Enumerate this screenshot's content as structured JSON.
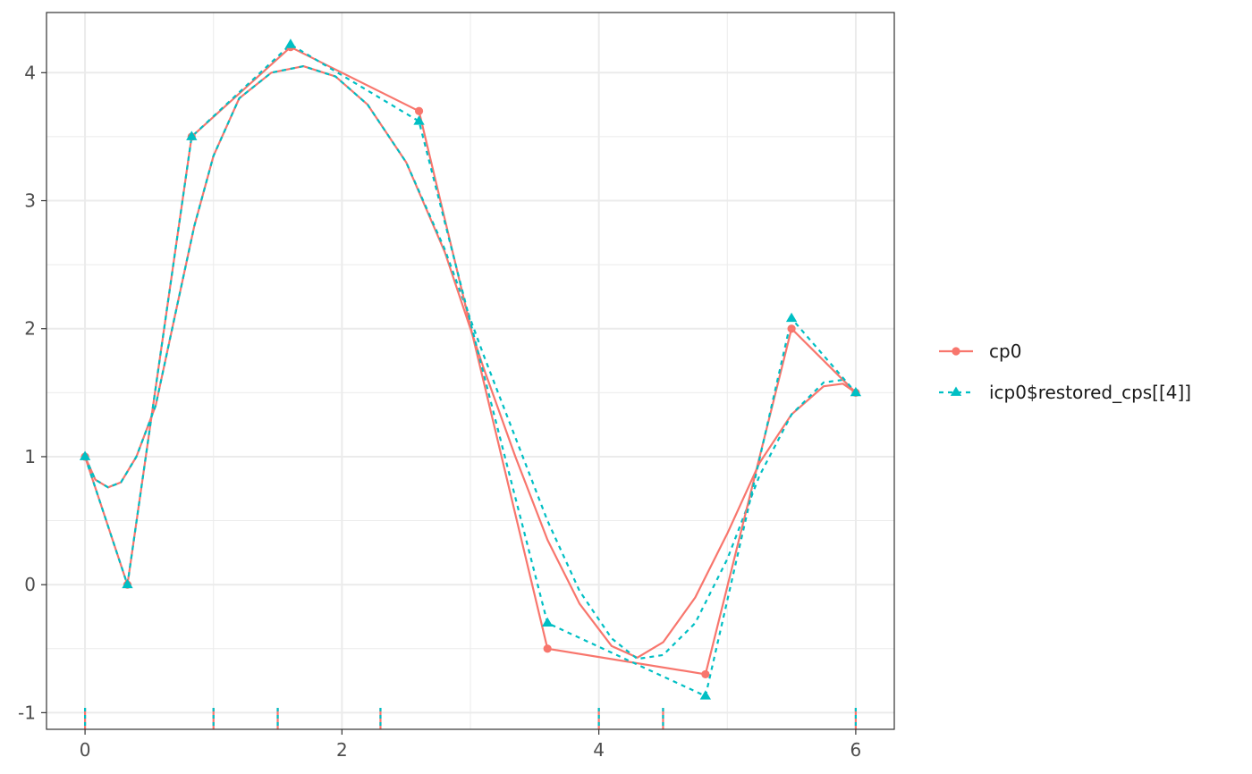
{
  "chart_data": {
    "type": "line",
    "title": "",
    "xlabel": "",
    "ylabel": "",
    "xlim": [
      -0.3,
      6.3
    ],
    "ylim": [
      -1.13,
      4.47
    ],
    "x_ticks": [
      0,
      2,
      4,
      6
    ],
    "x_tick_labels": [
      "0",
      "2",
      "4",
      "6"
    ],
    "y_ticks": [
      -1,
      0,
      1,
      2,
      3,
      4
    ],
    "y_tick_labels": [
      "-1",
      "0",
      "1",
      "2",
      "3",
      "4"
    ],
    "grid": true,
    "legend_position": "right",
    "series": [
      {
        "name": "cp0",
        "color": "#F8766D",
        "line_style": "solid",
        "marker": "circle",
        "control_points": [
          {
            "x": 0,
            "y": 1.0
          },
          {
            "x": 0.33,
            "y": 0.0
          },
          {
            "x": 0.83,
            "y": 3.5
          },
          {
            "x": 1.6,
            "y": 4.2
          },
          {
            "x": 2.6,
            "y": 3.7
          },
          {
            "x": 3.6,
            "y": -0.5
          },
          {
            "x": 4.83,
            "y": -0.7
          },
          {
            "x": 5.5,
            "y": 2.0
          },
          {
            "x": 6.0,
            "y": 1.5
          }
        ],
        "curve": [
          {
            "x": 0.0,
            "y": 1.0
          },
          {
            "x": 0.08,
            "y": 0.82
          },
          {
            "x": 0.18,
            "y": 0.76
          },
          {
            "x": 0.28,
            "y": 0.8
          },
          {
            "x": 0.4,
            "y": 1.0
          },
          {
            "x": 0.55,
            "y": 1.4
          },
          {
            "x": 0.7,
            "y": 2.1
          },
          {
            "x": 0.85,
            "y": 2.8
          },
          {
            "x": 1.0,
            "y": 3.35
          },
          {
            "x": 1.2,
            "y": 3.8
          },
          {
            "x": 1.45,
            "y": 4.0
          },
          {
            "x": 1.7,
            "y": 4.05
          },
          {
            "x": 1.95,
            "y": 3.97
          },
          {
            "x": 2.2,
            "y": 3.75
          },
          {
            "x": 2.5,
            "y": 3.3
          },
          {
            "x": 2.8,
            "y": 2.6
          },
          {
            "x": 3.1,
            "y": 1.7
          },
          {
            "x": 3.35,
            "y": 1.0
          },
          {
            "x": 3.6,
            "y": 0.35
          },
          {
            "x": 3.85,
            "y": -0.15
          },
          {
            "x": 4.1,
            "y": -0.48
          },
          {
            "x": 4.3,
            "y": -0.57
          },
          {
            "x": 4.5,
            "y": -0.45
          },
          {
            "x": 4.75,
            "y": -0.1
          },
          {
            "x": 5.0,
            "y": 0.4
          },
          {
            "x": 5.25,
            "y": 0.95
          },
          {
            "x": 5.5,
            "y": 1.33
          },
          {
            "x": 5.75,
            "y": 1.55
          },
          {
            "x": 5.9,
            "y": 1.57
          },
          {
            "x": 6.0,
            "y": 1.5
          }
        ]
      },
      {
        "name": "icp0$restored_cps[[4]]",
        "color": "#00BFC4",
        "line_style": "dotted",
        "marker": "triangle",
        "control_points": [
          {
            "x": 0,
            "y": 1.0
          },
          {
            "x": 0.33,
            "y": 0.0
          },
          {
            "x": 0.83,
            "y": 3.5
          },
          {
            "x": 1.6,
            "y": 4.22
          },
          {
            "x": 2.6,
            "y": 3.62
          },
          {
            "x": 3.6,
            "y": -0.3
          },
          {
            "x": 4.83,
            "y": -0.87
          },
          {
            "x": 5.5,
            "y": 2.08
          },
          {
            "x": 6.0,
            "y": 1.5
          }
        ],
        "curve": [
          {
            "x": 0.0,
            "y": 1.0
          },
          {
            "x": 0.08,
            "y": 0.82
          },
          {
            "x": 0.18,
            "y": 0.76
          },
          {
            "x": 0.28,
            "y": 0.8
          },
          {
            "x": 0.4,
            "y": 1.0
          },
          {
            "x": 0.55,
            "y": 1.4
          },
          {
            "x": 0.7,
            "y": 2.1
          },
          {
            "x": 0.85,
            "y": 2.8
          },
          {
            "x": 1.0,
            "y": 3.35
          },
          {
            "x": 1.2,
            "y": 3.8
          },
          {
            "x": 1.45,
            "y": 4.0
          },
          {
            "x": 1.7,
            "y": 4.05
          },
          {
            "x": 1.95,
            "y": 3.97
          },
          {
            "x": 2.2,
            "y": 3.75
          },
          {
            "x": 2.5,
            "y": 3.3
          },
          {
            "x": 2.8,
            "y": 2.62
          },
          {
            "x": 3.1,
            "y": 1.8
          },
          {
            "x": 3.35,
            "y": 1.15
          },
          {
            "x": 3.6,
            "y": 0.5
          },
          {
            "x": 3.85,
            "y": -0.05
          },
          {
            "x": 4.1,
            "y": -0.42
          },
          {
            "x": 4.3,
            "y": -0.58
          },
          {
            "x": 4.5,
            "y": -0.55
          },
          {
            "x": 4.75,
            "y": -0.3
          },
          {
            "x": 5.0,
            "y": 0.2
          },
          {
            "x": 5.25,
            "y": 0.85
          },
          {
            "x": 5.5,
            "y": 1.33
          },
          {
            "x": 5.75,
            "y": 1.58
          },
          {
            "x": 5.9,
            "y": 1.6
          },
          {
            "x": 6.0,
            "y": 1.5
          }
        ]
      }
    ],
    "knot_rug": [
      0,
      1,
      1.5,
      2.3,
      4,
      4.5,
      6
    ]
  }
}
